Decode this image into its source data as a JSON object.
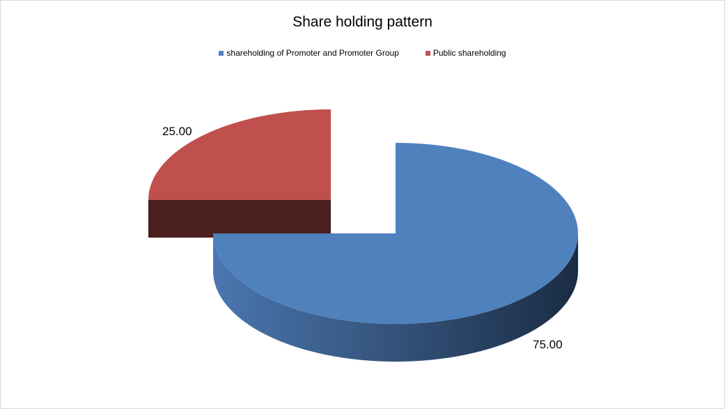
{
  "chart_data": {
    "type": "pie",
    "title": "Share holding pattern",
    "categories": [
      "shareholding of Promoter and Promoter Group",
      "Public shareholding"
    ],
    "values": [
      75.0,
      25.0
    ],
    "data_labels": [
      "75.00",
      "25.00"
    ],
    "colors": [
      "#4f81bd",
      "#c0504d"
    ],
    "legend_position": "top",
    "style": "3d-exploded"
  }
}
